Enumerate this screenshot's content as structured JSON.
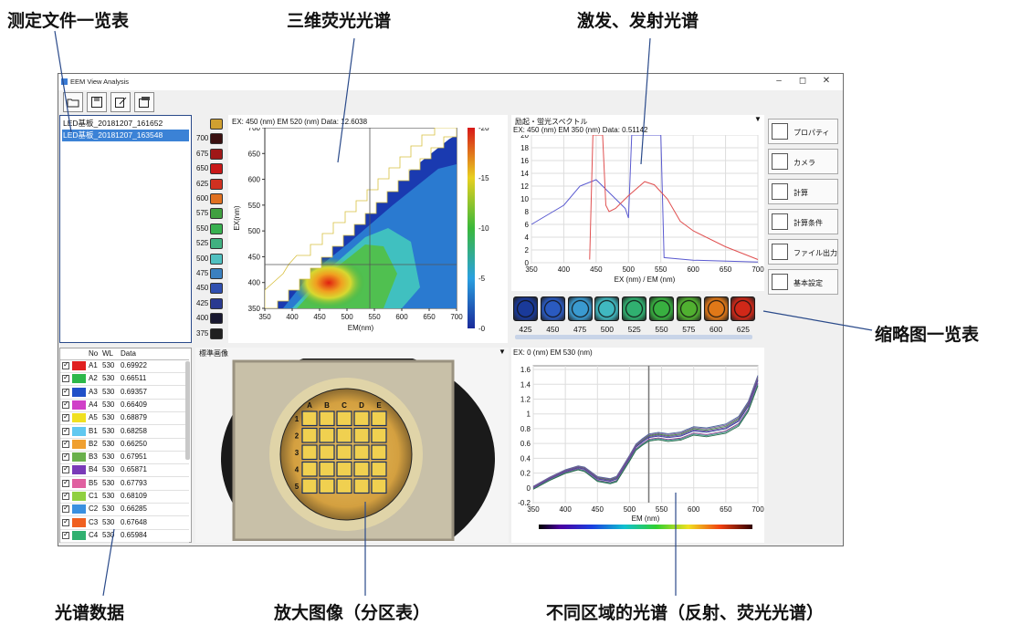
{
  "callouts": {
    "file_list": "测定文件一览表",
    "eem_3d": "三维荧光光谱",
    "ex_em": "激发、发射光谱",
    "thumbnails": "缩略图一览表",
    "spectral_data": "光谱数据",
    "zoom_image": "放大图像（分区表）",
    "region_spectra": "不同区域的光谱（反射、荧光光谱）"
  },
  "window": {
    "title": "EEM View Analysis",
    "min": "–",
    "max": "◻",
    "close": "✕"
  },
  "toolbar": [
    "open-folder-icon",
    "save-icon",
    "edit-document-icon",
    "export-icon"
  ],
  "files": [
    {
      "name": "LED基板_20181207_161652",
      "selected": false
    },
    {
      "name": "LED基板_20181207_163548",
      "selected": true
    }
  ],
  "table": {
    "headers": {
      "no": "No",
      "wl": "WL",
      "data": "Data"
    },
    "rows": [
      {
        "no": "A1",
        "wl": "530",
        "data": "0.69922",
        "color": "#e02020"
      },
      {
        "no": "A2",
        "wl": "530",
        "data": "0.66511",
        "color": "#2db84a"
      },
      {
        "no": "A3",
        "wl": "530",
        "data": "0.69357",
        "color": "#2050c8"
      },
      {
        "no": "A4",
        "wl": "530",
        "data": "0.66409",
        "color": "#d040c8"
      },
      {
        "no": "A5",
        "wl": "530",
        "data": "0.68879",
        "color": "#f0e020"
      },
      {
        "no": "B1",
        "wl": "530",
        "data": "0.68258",
        "color": "#60c8f0"
      },
      {
        "no": "B2",
        "wl": "530",
        "data": "0.66250",
        "color": "#f0a030"
      },
      {
        "no": "B3",
        "wl": "530",
        "data": "0.67951",
        "color": "#6ab04c"
      },
      {
        "no": "B4",
        "wl": "530",
        "data": "0.65871",
        "color": "#7a3ab8"
      },
      {
        "no": "B5",
        "wl": "530",
        "data": "0.67793",
        "color": "#e060a0"
      },
      {
        "no": "C1",
        "wl": "530",
        "data": "0.68109",
        "color": "#90d040"
      },
      {
        "no": "C2",
        "wl": "530",
        "data": "0.66285",
        "color": "#3a90e0"
      },
      {
        "no": "C3",
        "wl": "530",
        "data": "0.67648",
        "color": "#f06020"
      },
      {
        "no": "C4",
        "wl": "530",
        "data": "0.65984",
        "color": "#30b070"
      }
    ]
  },
  "wavelength_list": [
    {
      "wl": "",
      "color": "#d0a030"
    },
    {
      "wl": "700",
      "color": "#3a1010"
    },
    {
      "wl": "675",
      "color": "#a01818"
    },
    {
      "wl": "650",
      "color": "#c81818"
    },
    {
      "wl": "625",
      "color": "#d03020"
    },
    {
      "wl": "600",
      "color": "#e07020"
    },
    {
      "wl": "575",
      "color": "#40a040"
    },
    {
      "wl": "550",
      "color": "#38b050"
    },
    {
      "wl": "525",
      "color": "#40b080"
    },
    {
      "wl": "500",
      "color": "#50c0c0"
    },
    {
      "wl": "475",
      "color": "#3a80c0"
    },
    {
      "wl": "450",
      "color": "#3050b0"
    },
    {
      "wl": "425",
      "color": "#2a3a90"
    },
    {
      "wl": "400",
      "color": "#181830"
    },
    {
      "wl": "375",
      "color": "#202020"
    }
  ],
  "eem": {
    "header": "EX: 450 (nm) EM 520 (nm) Data: 12.6038",
    "x_label": "EM(nm)",
    "y_label": "EX(nm)",
    "x_ticks": [
      "350",
      "400",
      "450",
      "500",
      "550",
      "600",
      "650",
      "700"
    ],
    "y_ticks": [
      "700",
      "650",
      "600",
      "550",
      "500",
      "450",
      "400",
      "350"
    ],
    "colorbar_ticks": [
      "20",
      "15",
      "10",
      "5",
      "0"
    ]
  },
  "spectrum": {
    "title": "励起・蛍光スペクトル",
    "header": "EX: 450 (nm) EM 350 (nm) Data: 0.51142",
    "x_label": "EX (nm) / EM (nm)",
    "x_ticks": [
      "350",
      "400",
      "450",
      "500",
      "550",
      "600",
      "650",
      "700"
    ],
    "y_ticks": [
      "20",
      "18",
      "16",
      "14",
      "12",
      "10",
      "8",
      "6",
      "4",
      "2",
      "0"
    ]
  },
  "thumbnails": [
    {
      "wl": "425",
      "color": "#1a3a9a"
    },
    {
      "wl": "450",
      "color": "#2a5ac0"
    },
    {
      "wl": "475",
      "color": "#3a9ad0"
    },
    {
      "wl": "500",
      "color": "#40b8c0"
    },
    {
      "wl": "525",
      "color": "#30b070"
    },
    {
      "wl": "550",
      "color": "#38b040"
    },
    {
      "wl": "575",
      "color": "#50b030"
    },
    {
      "wl": "600",
      "color": "#e07818"
    },
    {
      "wl": "625",
      "color": "#d02818"
    }
  ],
  "image_panel": {
    "title": "標準画像",
    "cols": [
      "A",
      "B",
      "C",
      "D",
      "E"
    ],
    "rows": [
      "1",
      "2",
      "3",
      "4",
      "5"
    ]
  },
  "spectrum2": {
    "header": "EX: 0 (nm) EM 530 (nm)",
    "x_label": "EM (nm)",
    "x_ticks": [
      "350",
      "400",
      "450",
      "500",
      "550",
      "600",
      "650",
      "700"
    ],
    "y_ticks": [
      "1.6",
      "1.4",
      "1.2",
      "1",
      "0.8",
      "0.6",
      "0.4",
      "0.2",
      "0",
      "-0.2"
    ]
  },
  "side_buttons": [
    {
      "label": "プロパティ",
      "icon": "checkbox-icon"
    },
    {
      "label": "カメラ",
      "icon": "camera-icon"
    },
    {
      "label": "計算",
      "icon": "calculator-icon"
    },
    {
      "label": "計算条件",
      "icon": "condition-icon"
    },
    {
      "label": "ファイル出力",
      "icon": "file-export-icon"
    },
    {
      "label": "基本設定",
      "icon": "settings-gear-icon"
    }
  ],
  "chart_data": [
    {
      "type": "line",
      "title": "励起・蛍光スペクトル",
      "xlabel": "EX (nm) / EM (nm)",
      "ylabel": "",
      "xlim": [
        350,
        700
      ],
      "ylim": [
        0,
        20
      ],
      "series": [
        {
          "color": "#5a5ad0",
          "x": [
            350,
            375,
            400,
            425,
            450,
            460,
            475,
            490,
            495,
            500,
            505,
            550,
            555,
            600,
            700
          ],
          "y": [
            6,
            7.5,
            9,
            12,
            13,
            12,
            10.5,
            9,
            8.5,
            7,
            20,
            20,
            0.8,
            0.4,
            0.1
          ]
        },
        {
          "color": "#e05050",
          "x": [
            440,
            445,
            450,
            455,
            460,
            465,
            470,
            480,
            500,
            525,
            540,
            560,
            580,
            600,
            650,
            700
          ],
          "y": [
            0.5,
            20,
            20,
            20,
            20,
            9,
            8,
            8.5,
            10.5,
            12.7,
            12.2,
            10,
            6.5,
            5,
            2.5,
            0.5
          ]
        }
      ]
    },
    {
      "type": "line",
      "xlabel": "EM (nm)",
      "ylabel": "",
      "xlim": [
        350,
        700
      ],
      "ylim": [
        -0.2,
        1.65
      ],
      "series": [
        {
          "color": "#4a5a8a",
          "x": [
            350,
            375,
            400,
            420,
            430,
            450,
            470,
            480,
            500,
            510,
            520,
            530,
            545,
            560,
            580,
            600,
            620,
            650,
            670,
            685,
            700
          ],
          "y": [
            0.0,
            0.12,
            0.22,
            0.27,
            0.25,
            0.12,
            0.09,
            0.12,
            0.4,
            0.55,
            0.62,
            0.68,
            0.7,
            0.68,
            0.7,
            0.77,
            0.75,
            0.8,
            0.9,
            1.1,
            1.45
          ]
        }
      ]
    }
  ]
}
